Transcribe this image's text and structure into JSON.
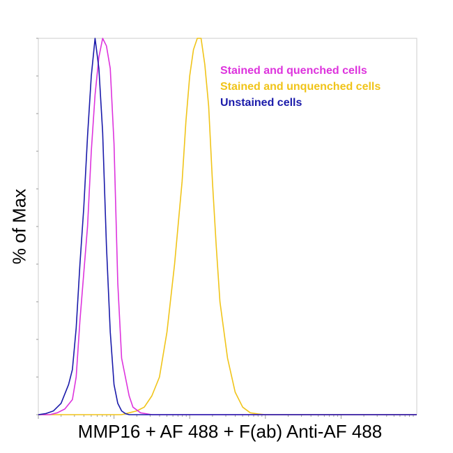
{
  "chart_data": {
    "type": "line",
    "title": "",
    "xlabel": "MMP16 + AF 488 + F(ab) Anti-AF 488",
    "ylabel": "% of Max",
    "xlim": [
      0,
      100
    ],
    "ylim": [
      0,
      100
    ],
    "grid": false,
    "legend_position": "top-right",
    "series": [
      {
        "name": "Stained and quenched cells",
        "color": "#dd33dd",
        "x": [
          0,
          3,
          5,
          7,
          9,
          10,
          11,
          13,
          14,
          15,
          16,
          17,
          18,
          19,
          20,
          21,
          22,
          24,
          25,
          27,
          30,
          40,
          100
        ],
        "y": [
          0,
          0,
          0.5,
          1.5,
          4,
          10,
          25,
          50,
          70,
          85,
          95,
          100,
          98,
          92,
          72,
          35,
          15,
          5,
          2,
          0.5,
          0,
          0,
          0
        ]
      },
      {
        "name": "Stained and unquenched cells",
        "color": "#f0c419",
        "x": [
          0,
          20,
          22,
          24,
          26,
          28,
          30,
          32,
          34,
          36,
          38,
          39,
          40,
          41,
          42,
          43,
          44,
          45,
          46,
          47,
          48,
          50,
          52,
          54,
          56,
          58,
          60,
          65,
          100
        ],
        "y": [
          0,
          0,
          0,
          0.5,
          1,
          2,
          5,
          10,
          22,
          40,
          62,
          78,
          90,
          97,
          100,
          100,
          93,
          82,
          62,
          45,
          30,
          15,
          6,
          2,
          0.5,
          0.2,
          0,
          0,
          0
        ]
      },
      {
        "name": "Unstained cells",
        "color": "#1a1aaa",
        "x": [
          0,
          2,
          4,
          6,
          8,
          9,
          10,
          11,
          12,
          13,
          14,
          15,
          16,
          17,
          18,
          19,
          20,
          21,
          22,
          23,
          24,
          26,
          30,
          100
        ],
        "y": [
          0,
          0.3,
          1,
          3,
          8,
          12,
          23,
          40,
          55,
          74,
          90,
          100,
          92,
          75,
          45,
          22,
          8,
          3,
          1,
          0.3,
          0,
          0,
          0,
          0
        ]
      }
    ]
  }
}
